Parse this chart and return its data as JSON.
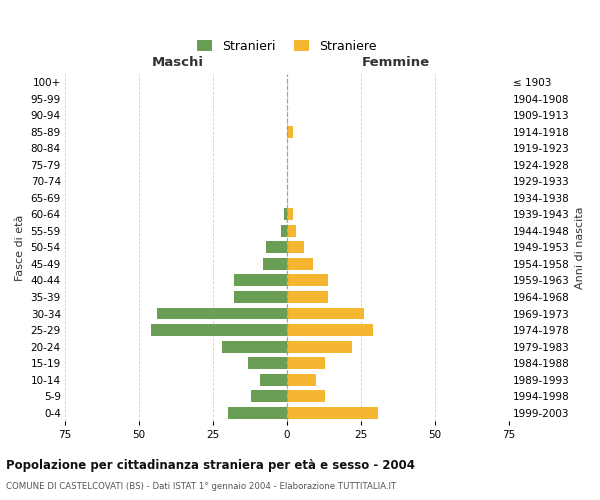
{
  "age_groups": [
    "100+",
    "95-99",
    "90-94",
    "85-89",
    "80-84",
    "75-79",
    "70-74",
    "65-69",
    "60-64",
    "55-59",
    "50-54",
    "45-49",
    "40-44",
    "35-39",
    "30-34",
    "25-29",
    "20-24",
    "15-19",
    "10-14",
    "5-9",
    "0-4"
  ],
  "birth_years": [
    "≤ 1903",
    "1904-1908",
    "1909-1913",
    "1914-1918",
    "1919-1923",
    "1924-1928",
    "1929-1933",
    "1934-1938",
    "1939-1943",
    "1944-1948",
    "1949-1953",
    "1954-1958",
    "1959-1963",
    "1964-1968",
    "1969-1973",
    "1974-1978",
    "1979-1983",
    "1984-1988",
    "1989-1993",
    "1994-1998",
    "1999-2003"
  ],
  "males": [
    0,
    0,
    0,
    0,
    0,
    0,
    0,
    0,
    1,
    2,
    7,
    8,
    18,
    18,
    44,
    46,
    22,
    13,
    9,
    12,
    20
  ],
  "females": [
    0,
    0,
    0,
    2,
    0,
    0,
    0,
    0,
    2,
    3,
    6,
    9,
    14,
    14,
    26,
    29,
    22,
    13,
    10,
    13,
    31
  ],
  "male_color": "#6b9e55",
  "female_color": "#f5b731",
  "background_color": "#ffffff",
  "grid_color": "#cccccc",
  "title": "Popolazione per cittadinanza straniera per età e sesso - 2004",
  "subtitle": "COMUNE DI CASTELCOVATI (BS) - Dati ISTAT 1° gennaio 2004 - Elaborazione TUTTITALIA.IT",
  "xlabel_left": "Maschi",
  "xlabel_right": "Femmine",
  "ylabel_left": "Fasce di età",
  "ylabel_right": "Anni di nascita",
  "legend_male": "Stranieri",
  "legend_female": "Straniere",
  "xlim": 75,
  "xticks": [
    -75,
    -50,
    -25,
    0,
    25,
    50,
    75
  ],
  "xticklabels": [
    "75",
    "50",
    "25",
    "0",
    "25",
    "50",
    "75"
  ]
}
